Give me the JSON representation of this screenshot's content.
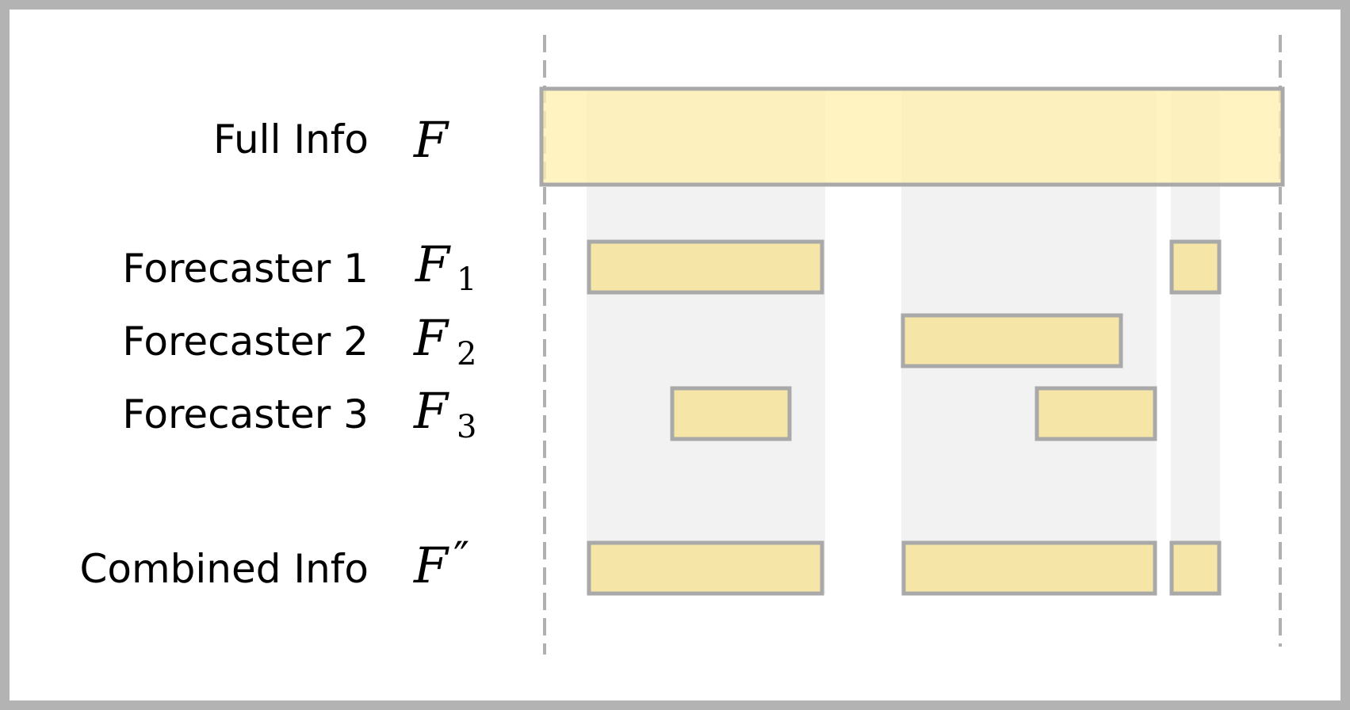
{
  "rows": [
    {
      "label": "Full Info",
      "symbol": "F",
      "subscript": "",
      "prime": ""
    },
    {
      "label": "Forecaster 1",
      "symbol": "F",
      "subscript": "1",
      "prime": ""
    },
    {
      "label": "Forecaster 2",
      "symbol": "F",
      "subscript": "2",
      "prime": ""
    },
    {
      "label": "Forecaster 3",
      "symbol": "F",
      "subscript": "3",
      "prime": ""
    },
    {
      "label": "Combined Info",
      "symbol": "F",
      "subscript": "",
      "prime": "″"
    }
  ],
  "colors": {
    "frame": "#b3b3b3",
    "interval_fill": "#f5e6a7",
    "full_fill": "#fff0b0",
    "interval_stroke": "#a9a9a9",
    "shade": "#f2f2f2",
    "axis": "#b0b0b0"
  }
}
